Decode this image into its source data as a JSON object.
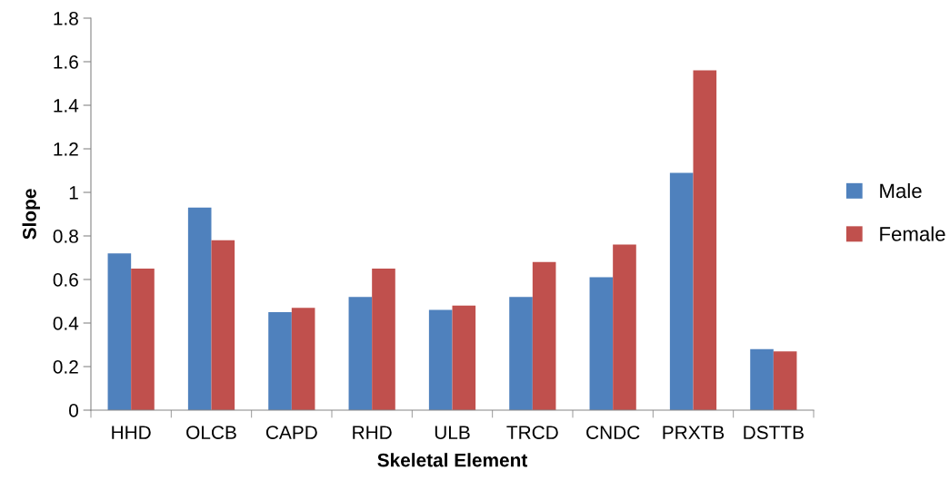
{
  "chart_data": {
    "type": "bar",
    "xlabel": "Skeletal Element",
    "ylabel": "Slope",
    "categories": [
      "HHD",
      "OLCB",
      "CAPD",
      "RHD",
      "ULB",
      "TRCD",
      "CNDC",
      "PRXTB",
      "DSTTB"
    ],
    "series": [
      {
        "name": "Male",
        "color": "#4f81bd",
        "values": [
          0.72,
          0.93,
          0.45,
          0.52,
          0.46,
          0.52,
          0.61,
          1.09,
          0.28
        ]
      },
      {
        "name": "Female",
        "color": "#c0504d",
        "values": [
          0.65,
          0.78,
          0.47,
          0.65,
          0.48,
          0.68,
          0.76,
          1.56,
          0.27
        ]
      }
    ],
    "ylim": [
      0,
      1.8
    ],
    "yticks": [
      0,
      0.2,
      0.4,
      0.6,
      0.8,
      1,
      1.2,
      1.4,
      1.6,
      1.8
    ],
    "grid": false,
    "legend": "right"
  }
}
